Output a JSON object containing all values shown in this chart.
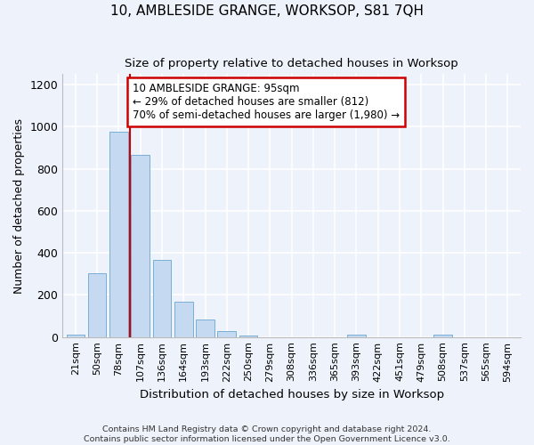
{
  "title": "10, AMBLESIDE GRANGE, WORKSOP, S81 7QH",
  "subtitle": "Size of property relative to detached houses in Worksop",
  "xlabel": "Distribution of detached houses by size in Worksop",
  "ylabel": "Number of detached properties",
  "bar_color": "#c5d9f0",
  "bar_edge_color": "#7aaed6",
  "background_color": "#eef3fb",
  "grid_color": "#ffffff",
  "annotation_box_color": "#cc0000",
  "vline_color": "#cc0000",
  "categories": [
    "21sqm",
    "50sqm",
    "78sqm",
    "107sqm",
    "136sqm",
    "164sqm",
    "193sqm",
    "222sqm",
    "250sqm",
    "279sqm",
    "308sqm",
    "336sqm",
    "365sqm",
    "393sqm",
    "422sqm",
    "451sqm",
    "479sqm",
    "508sqm",
    "537sqm",
    "565sqm",
    "594sqm"
  ],
  "values": [
    13,
    305,
    975,
    865,
    365,
    170,
    85,
    27,
    5,
    0,
    0,
    0,
    0,
    13,
    0,
    0,
    0,
    13,
    0,
    0,
    0
  ],
  "property_bin_index": 2,
  "annotation_text": "10 AMBLESIDE GRANGE: 95sqm\n← 29% of detached houses are smaller (812)\n70% of semi-detached houses are larger (1,980) →",
  "ylim": [
    0,
    1250
  ],
  "yticks": [
    0,
    200,
    400,
    600,
    800,
    1000,
    1200
  ],
  "footnote": "Contains HM Land Registry data © Crown copyright and database right 2024.\nContains public sector information licensed under the Open Government Licence v3.0.",
  "figsize": [
    6.0,
    5.0
  ],
  "dpi": 100
}
